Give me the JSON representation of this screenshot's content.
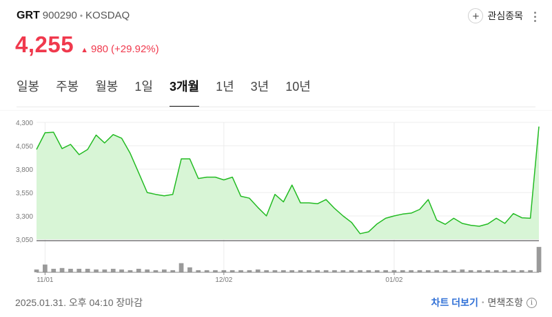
{
  "stock": {
    "ticker": "GRT",
    "code": "900290",
    "separator": "•",
    "market": "KOSDAQ",
    "price": "4,255",
    "change_arrow": "▲",
    "change": "980",
    "change_pct": "(+29.92%)"
  },
  "watchlist": {
    "plus": "+",
    "label": "관심종목"
  },
  "tabs": [
    {
      "label": "일봉",
      "active": false
    },
    {
      "label": "주봉",
      "active": false
    },
    {
      "label": "월봉",
      "active": false
    },
    {
      "label": "1일",
      "active": false
    },
    {
      "label": "3개월",
      "active": true
    },
    {
      "label": "1년",
      "active": false
    },
    {
      "label": "3년",
      "active": false
    },
    {
      "label": "10년",
      "active": false
    }
  ],
  "footer": {
    "timestamp": "2025.01.31. 오후 04:10 장마감",
    "chart_more": "차트 더보기",
    "separator": "•",
    "disclaimer": "면책조항",
    "info": "i"
  },
  "colors": {
    "up": "#f0394d",
    "line": "#22bb22",
    "area": "#d8f5d6",
    "volume": "#9a9a9a",
    "link": "#2f6fd6"
  },
  "chart_data": {
    "type": "area",
    "ytick_labels": [
      "4,300",
      "4,050",
      "3,800",
      "3,550",
      "3,300",
      "3,050"
    ],
    "ytick_values": [
      4300,
      4050,
      3800,
      3550,
      3300,
      3050
    ],
    "ylim": [
      3050,
      4300
    ],
    "xtick_labels": [
      "11/01",
      "12/02",
      "01/02"
    ],
    "xtick_index": [
      1,
      22,
      42
    ],
    "grid": true,
    "series": [
      {
        "values": [
          4010,
          4190,
          4195,
          4020,
          4065,
          3955,
          4010,
          4165,
          4080,
          4170,
          4130,
          3970,
          3760,
          3550,
          3530,
          3515,
          3530,
          3910,
          3910,
          3700,
          3715,
          3715,
          3685,
          3715,
          3510,
          3490,
          3390,
          3300,
          3530,
          3450,
          3630,
          3440,
          3440,
          3430,
          3475,
          3380,
          3300,
          3230,
          3110,
          3130,
          3215,
          3275,
          3300,
          3320,
          3330,
          3370,
          3475,
          3255,
          3210,
          3275,
          3220,
          3200,
          3190,
          3215,
          3275,
          3220,
          3325,
          3280,
          3275,
          4255
        ]
      }
    ],
    "volume": [
      4,
      11,
      5,
      6,
      5,
      5,
      5,
      4,
      4,
      5,
      4,
      3,
      5,
      4,
      3,
      4,
      3,
      13,
      7,
      3,
      3,
      3,
      3,
      3,
      3,
      3,
      4,
      3,
      3,
      3,
      3,
      3,
      3,
      3,
      3,
      3,
      3,
      3,
      3,
      3,
      3,
      3,
      3,
      3,
      3,
      3,
      3,
      3,
      3,
      3,
      4,
      3,
      3,
      3,
      3,
      3,
      3,
      3,
      3,
      36
    ],
    "volume_max": 40
  }
}
